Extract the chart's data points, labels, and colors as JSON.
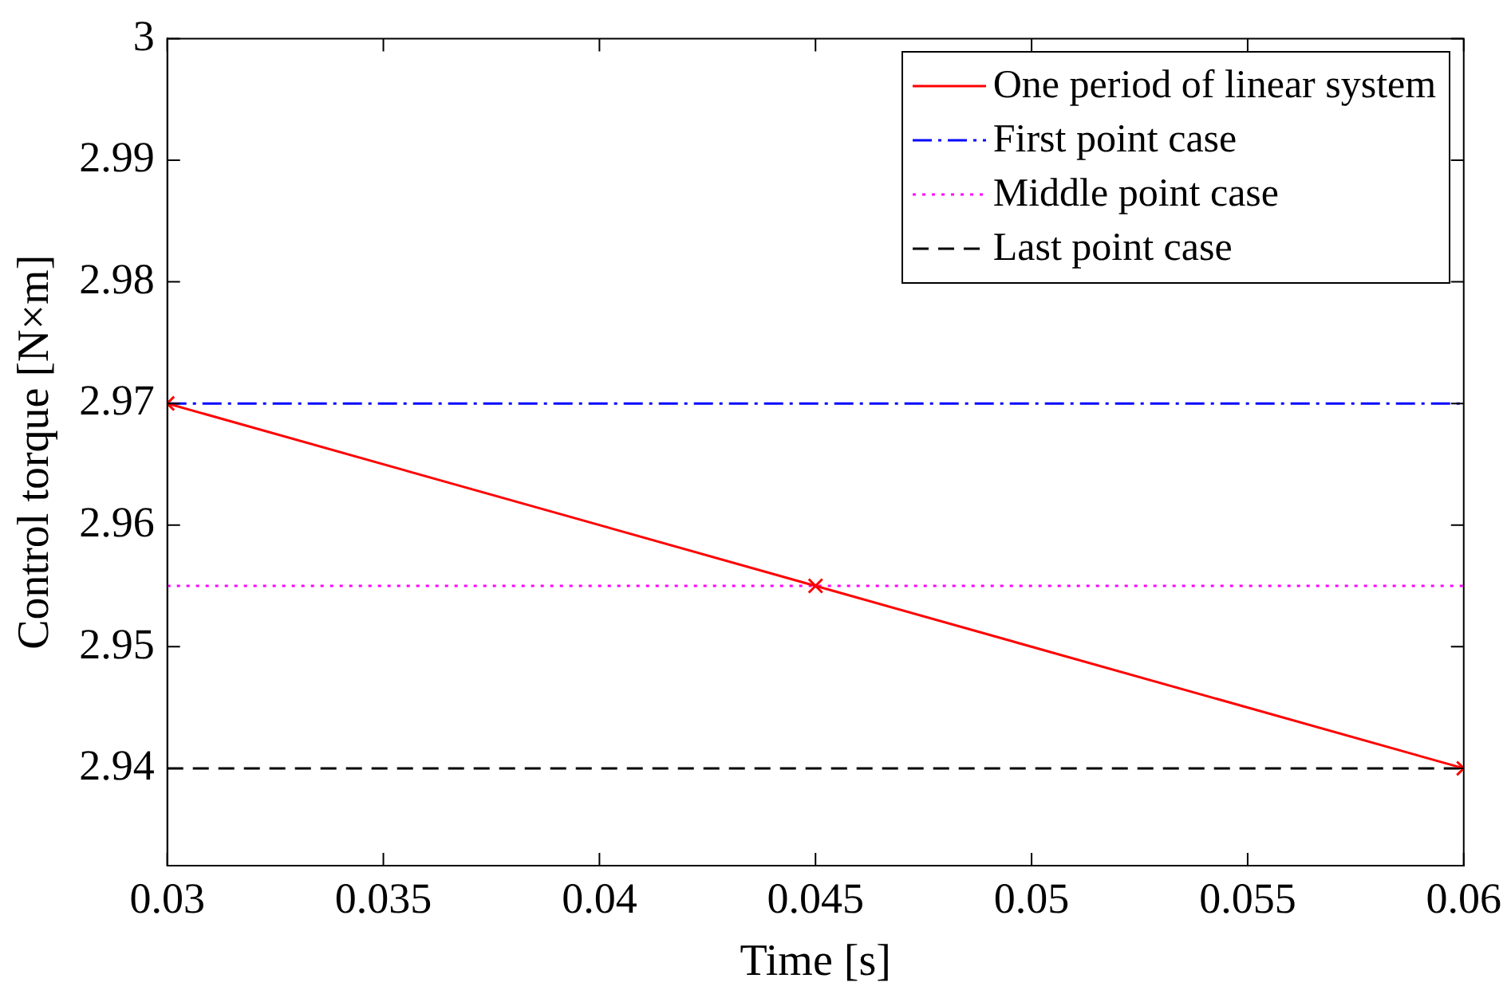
{
  "chart_data": {
    "type": "line",
    "xlabel": "Time [s]",
    "ylabel": "Control torque [N×m]",
    "xlim": [
      0.03,
      0.06
    ],
    "xticks": [
      0.03,
      0.035,
      0.04,
      0.045,
      0.05,
      0.055,
      0.06
    ],
    "ylim": [
      2.932,
      3
    ],
    "yticks": [
      2.94,
      2.95,
      2.96,
      2.97,
      2.98,
      2.99,
      3
    ],
    "grid": false,
    "legend": "top right",
    "series": [
      {
        "name": "One period of linear system",
        "color": "#ff0000",
        "x": [
          0.03,
          0.045,
          0.06
        ],
        "values": [
          2.97,
          2.955,
          2.94
        ],
        "marker": "cross",
        "line_style": "solid"
      },
      {
        "name": "First point case",
        "color": "#0000ff",
        "x": [
          0.03,
          0.06
        ],
        "values": [
          2.97,
          2.97
        ],
        "marker": "none",
        "line_style": "dashdot"
      },
      {
        "name": "Middle point case",
        "color": "#ff00ff",
        "x": [
          0.03,
          0.06
        ],
        "values": [
          2.955,
          2.955
        ],
        "marker": "none",
        "line_style": "dotted"
      },
      {
        "name": "Last point case",
        "color": "#000000",
        "x": [
          0.03,
          0.06
        ],
        "values": [
          2.94,
          2.94
        ],
        "marker": "none",
        "line_style": "dashed"
      }
    ]
  }
}
